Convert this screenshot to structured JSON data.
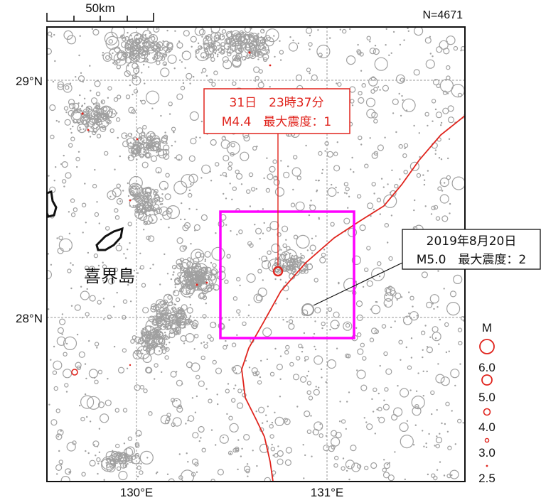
{
  "map": {
    "scale_bar_label": "50km",
    "count_label": "N=4671",
    "lat_labels": [
      "29°N",
      "28°N"
    ],
    "lon_labels": [
      "130°E",
      "131°E"
    ],
    "island_label": "喜界島",
    "colors": {
      "background_events": "#a0a0a0",
      "recent_events": "#e0241d",
      "trench_line": "#e0241d",
      "highlight_box": "#ff00ff",
      "grid": "#9a9a9a"
    }
  },
  "annotations": {
    "latest": {
      "line1": "31日　23時37分",
      "line2": "M4.4　最大震度：1",
      "magnitude": 4.4,
      "max_intensity": 1
    },
    "past": {
      "line1": "2019年8月20日",
      "line2": "M5.0　最大震度：2",
      "magnitude": 5.0,
      "max_intensity": 2
    }
  },
  "legend": {
    "title": "M",
    "items": [
      {
        "label": "6.0",
        "magnitude": 6.0
      },
      {
        "label": "5.0",
        "magnitude": 5.0
      },
      {
        "label": "4.0",
        "magnitude": 4.0
      },
      {
        "label": "3.0",
        "magnitude": 3.0
      },
      {
        "label": "2.5",
        "magnitude": 2.5
      }
    ]
  }
}
